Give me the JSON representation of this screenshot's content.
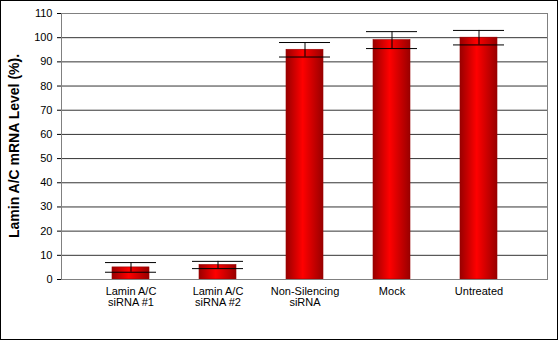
{
  "chart_data": {
    "type": "bar",
    "y_label": "Lamin A/C mRNA Level (%).",
    "categories": [
      "Lamin A/C\nsiRNA #1",
      "Lamin A/C\nsiRNA #2",
      "Non-Silencing\nsiRNA",
      "Mock",
      "Untreated"
    ],
    "values": [
      5,
      6,
      95,
      99,
      100
    ],
    "errors": [
      2,
      1.5,
      3,
      3.5,
      3
    ],
    "color": "#cc0000",
    "ylim": [
      0,
      110
    ],
    "yticks": [
      0,
      10,
      20,
      30,
      40,
      50,
      60,
      70,
      80,
      90,
      100,
      110
    ],
    "grid": true
  }
}
